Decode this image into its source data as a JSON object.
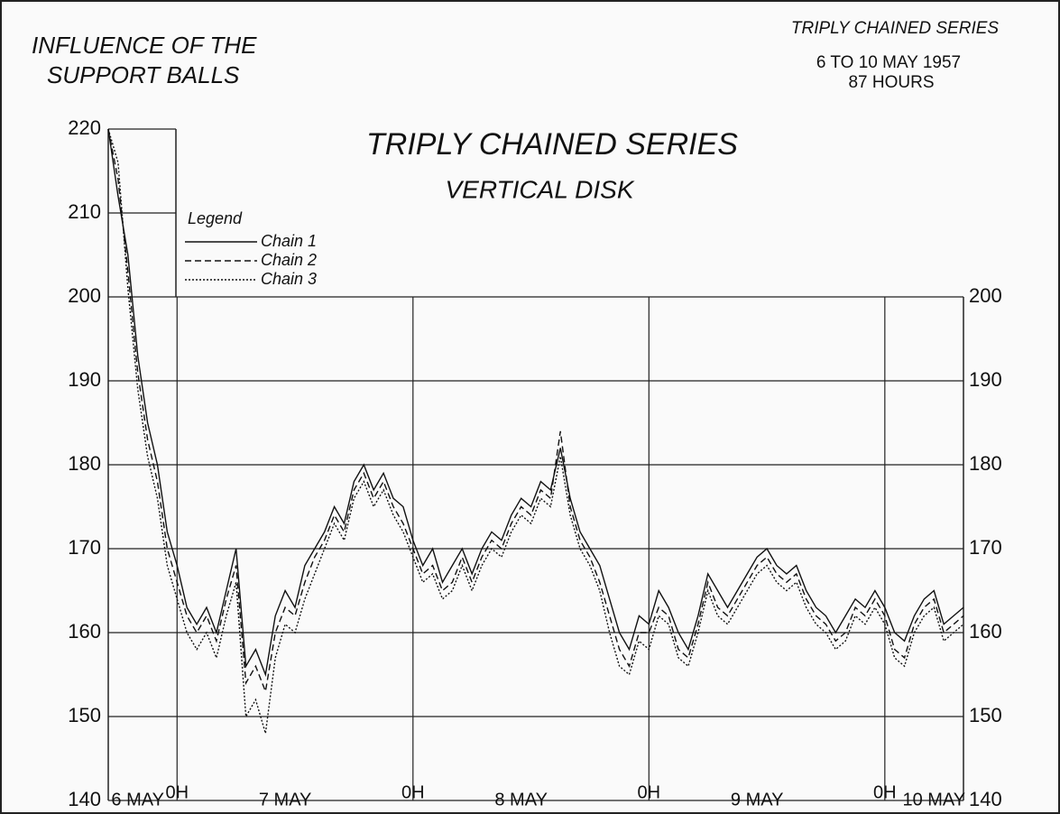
{
  "chart_data": {
    "type": "line",
    "title": [
      "INFLUENCE OF THE",
      "SUPPORT BALLS"
    ],
    "subtitle": [
      "TRIPLY CHAINED SERIES",
      "VERTICAL DISK"
    ],
    "annotations": [
      "TRIPLY CHAINED SERIES",
      "6 TO 10 MAY 1957",
      "87 HOURS"
    ],
    "legend_title": "Legend",
    "x": [
      0,
      1,
      2,
      3,
      4,
      5,
      6,
      7,
      8,
      9,
      10,
      11,
      12,
      13,
      14,
      15,
      16,
      17,
      18,
      19,
      20,
      21,
      22,
      23,
      24,
      25,
      26,
      27,
      28,
      29,
      30,
      31,
      32,
      33,
      34,
      35,
      36,
      37,
      38,
      39,
      40,
      41,
      42,
      43,
      44,
      45,
      46,
      47,
      48,
      49,
      50,
      51,
      52,
      53,
      54,
      55,
      56,
      57,
      58,
      59,
      60,
      61,
      62,
      63,
      64,
      65,
      66,
      67,
      68,
      69,
      70,
      71,
      72,
      73,
      74,
      75,
      76,
      77,
      78,
      79,
      80,
      81,
      82,
      83,
      84,
      85,
      86,
      87
    ],
    "series": [
      {
        "name": "Chain 1",
        "color": "#111111",
        "dash": "solid",
        "values": [
          220,
          212,
          205,
          193,
          185,
          180,
          172,
          168,
          163,
          161,
          163,
          160,
          165,
          170,
          156,
          158,
          155,
          162,
          165,
          163,
          168,
          170,
          172,
          175,
          173,
          178,
          180,
          177,
          179,
          176,
          175,
          171,
          168,
          170,
          166,
          168,
          170,
          167,
          170,
          172,
          171,
          174,
          176,
          175,
          178,
          177,
          182,
          176,
          172,
          170,
          168,
          164,
          160,
          158,
          162,
          161,
          165,
          163,
          160,
          158,
          162,
          167,
          165,
          163,
          165,
          167,
          169,
          170,
          168,
          167,
          168,
          165,
          163,
          162,
          160,
          162,
          164,
          163,
          165,
          163,
          160,
          159,
          162,
          164,
          165,
          161,
          162,
          163
        ]
      },
      {
        "name": "Chain 2",
        "color": "#111111",
        "dash": "dashed",
        "values": [
          220,
          214,
          203,
          191,
          183,
          178,
          170,
          166,
          162,
          160,
          162,
          159,
          164,
          168,
          154,
          156,
          153,
          160,
          163,
          162,
          166,
          169,
          171,
          174,
          172,
          177,
          179,
          176,
          178,
          175,
          173,
          170,
          167,
          168,
          165,
          166,
          169,
          166,
          169,
          171,
          170,
          173,
          175,
          174,
          177,
          176,
          184,
          175,
          171,
          169,
          166,
          162,
          158,
          156,
          160,
          160,
          163,
          162,
          158,
          157,
          161,
          166,
          163,
          162,
          164,
          166,
          168,
          169,
          167,
          166,
          167,
          164,
          162,
          161,
          159,
          160,
          163,
          162,
          164,
          162,
          158,
          157,
          161,
          163,
          164,
          160,
          161,
          162
        ]
      },
      {
        "name": "Chain 3",
        "color": "#111111",
        "dash": "dotted",
        "values": [
          220,
          216,
          201,
          189,
          181,
          176,
          168,
          164,
          160,
          158,
          160,
          157,
          162,
          166,
          150,
          152,
          148,
          157,
          161,
          160,
          164,
          167,
          170,
          173,
          171,
          176,
          178,
          175,
          177,
          174,
          172,
          169,
          166,
          167,
          164,
          165,
          168,
          165,
          168,
          170,
          169,
          172,
          174,
          173,
          176,
          175,
          181,
          174,
          170,
          168,
          165,
          160,
          156,
          155,
          159,
          158,
          162,
          161,
          157,
          156,
          160,
          165,
          162,
          161,
          163,
          165,
          167,
          168,
          166,
          165,
          166,
          163,
          161,
          160,
          158,
          159,
          162,
          161,
          163,
          161,
          157,
          156,
          160,
          162,
          163,
          159,
          160,
          161
        ]
      }
    ],
    "xlim": [
      0,
      87
    ],
    "xticks": [
      {
        "value": 7,
        "label": "0H"
      },
      {
        "value": 31,
        "label": "0H"
      },
      {
        "value": 55,
        "label": "0H"
      },
      {
        "value": 79,
        "label": "0H"
      }
    ],
    "day_labels": [
      {
        "value": 3,
        "label": "6 MAY"
      },
      {
        "value": 18,
        "label": "7 MAY"
      },
      {
        "value": 42,
        "label": "8 MAY"
      },
      {
        "value": 66,
        "label": "9 MAY"
      },
      {
        "value": 84,
        "label": "10 MAY"
      }
    ],
    "ylim": [
      140,
      220
    ],
    "yticks": [
      140,
      150,
      160,
      170,
      180,
      190,
      200,
      210,
      220
    ],
    "y2lim": [
      140,
      220
    ],
    "y2ticks": [
      140,
      150,
      160,
      170,
      180,
      190,
      200
    ],
    "grid": true
  }
}
